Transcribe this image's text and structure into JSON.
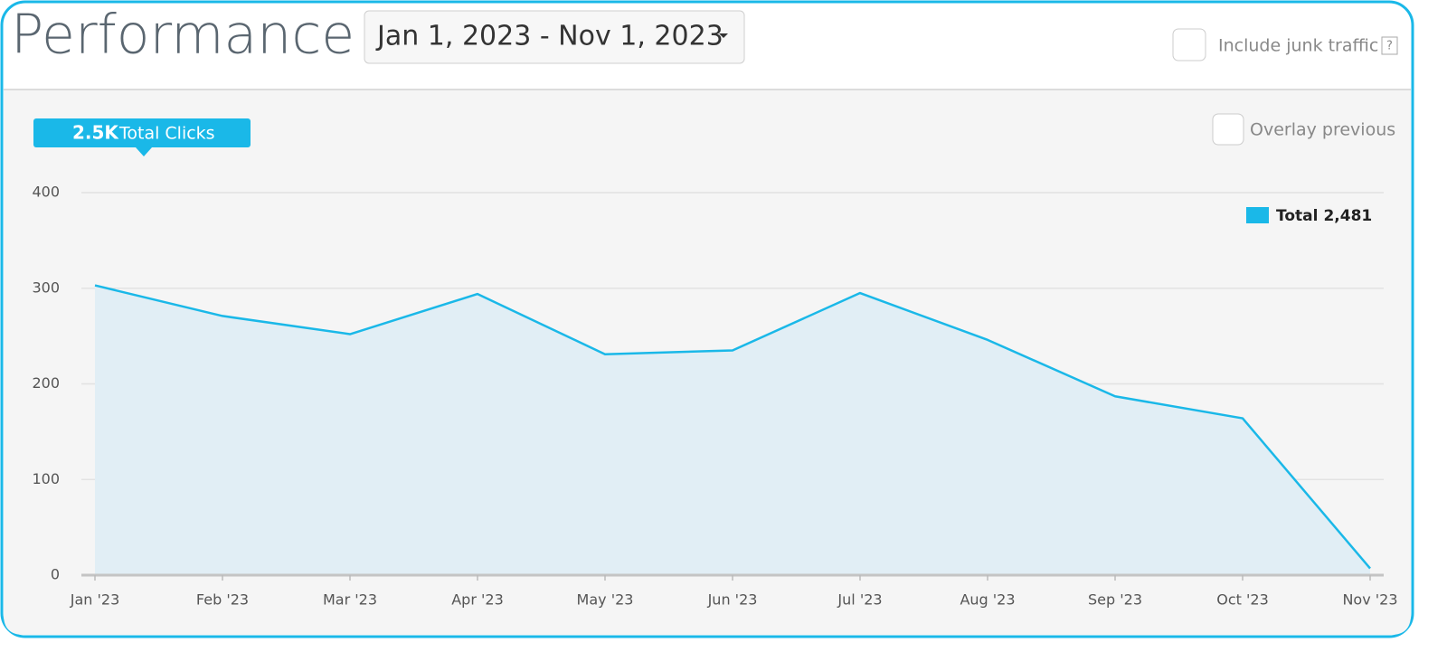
{
  "header": {
    "title": "Performance",
    "date_range": "Jan 1, 2023 - Nov 1, 2023",
    "junk_label": "Include junk traffic",
    "help": "?"
  },
  "summary": {
    "value_text": "2.5K",
    "label": "Total Clicks"
  },
  "overlay_label": "Overlay previous",
  "chart_data": {
    "type": "area",
    "categories": [
      "Jan '23",
      "Feb '23",
      "Mar '23",
      "Apr '23",
      "May '23",
      "Jun '23",
      "Jul '23",
      "Aug '23",
      "Sep '23",
      "Oct '23",
      "Nov '23"
    ],
    "series": [
      {
        "name": "Total",
        "color": "#1ab8e8",
        "values": [
          303,
          271,
          252,
          294,
          231,
          235,
          295,
          246,
          187,
          164,
          7
        ]
      }
    ],
    "legend_total": "2,481",
    "ylim": [
      0,
      400
    ],
    "yticks": [
      0,
      100,
      200,
      300,
      400
    ],
    "grid": true,
    "legend": "upper right"
  }
}
